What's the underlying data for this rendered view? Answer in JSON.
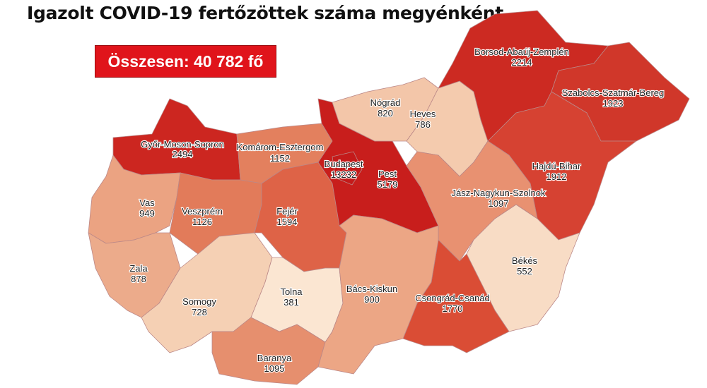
{
  "title": "Igazolt COVID-19 fertőzöttek száma megyénként",
  "total_label": "Összesen: 40 782 fő",
  "total_box_color": "#e0141b",
  "counties": [
    {
      "id": "gyor",
      "name": "Győr-Moson-Sopron",
      "value": "2494",
      "color": "#cc2620"
    },
    {
      "id": "komarom",
      "name": "Komárom-Esztergom",
      "value": "1152",
      "color": "#e3805e"
    },
    {
      "id": "vas",
      "name": "Vas",
      "value": "949",
      "color": "#eba382"
    },
    {
      "id": "veszprem",
      "name": "Veszprém",
      "value": "1126",
      "color": "#e27b5a"
    },
    {
      "id": "fejer",
      "name": "Fejér",
      "value": "1594",
      "color": "#de6347"
    },
    {
      "id": "zala",
      "name": "Zala",
      "value": "878",
      "color": "#ecab8b"
    },
    {
      "id": "somogy",
      "name": "Somogy",
      "value": "728",
      "color": "#f5d0b4"
    },
    {
      "id": "tolna",
      "name": "Tolna",
      "value": "381",
      "color": "#fbe6d2"
    },
    {
      "id": "baranya",
      "name": "Baranya",
      "value": "1095",
      "color": "#e68f6e"
    },
    {
      "id": "pest",
      "name": "Pest",
      "value": "5179",
      "color": "#c81e1c"
    },
    {
      "id": "budapest",
      "name": "Budapest",
      "value": "13232",
      "color": "#c41a1a"
    },
    {
      "id": "nograd",
      "name": "Nógrád",
      "value": "820",
      "color": "#f3c6a9"
    },
    {
      "id": "heves",
      "name": "Heves",
      "value": "786",
      "color": "#f4cbae"
    },
    {
      "id": "borsod",
      "name": "Borsod-Abaúj-Zemplén",
      "value": "2214",
      "color": "#cc2a22"
    },
    {
      "id": "szabolcs",
      "name": "Szabolcs-Szatmár-Bereg",
      "value": "1923",
      "color": "#d0372a"
    },
    {
      "id": "hajdu",
      "name": "Hajdú-Bihar",
      "value": "1912",
      "color": "#d64232"
    },
    {
      "id": "jasz",
      "name": "Jász-Nagykun-Szolnok",
      "value": "1097",
      "color": "#e89171"
    },
    {
      "id": "bekes",
      "name": "Békés",
      "value": "552",
      "color": "#f8dcc5"
    },
    {
      "id": "csongrad",
      "name": "Csongrád-Csanád",
      "value": "1770",
      "color": "#da4d35"
    },
    {
      "id": "bacs",
      "name": "Bács-Kiskun",
      "value": "900",
      "color": "#eca685"
    }
  ]
}
